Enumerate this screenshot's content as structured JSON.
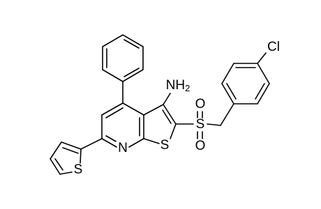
{
  "atoms": [
    {
      "label": "Cl"
    },
    {
      "label": "NH",
      "subscript": "2"
    },
    {
      "label": "S"
    },
    {
      "label": "O"
    },
    {
      "label": "O"
    },
    {
      "label": "N"
    },
    {
      "label": "S"
    },
    {
      "label": "S"
    }
  ]
}
